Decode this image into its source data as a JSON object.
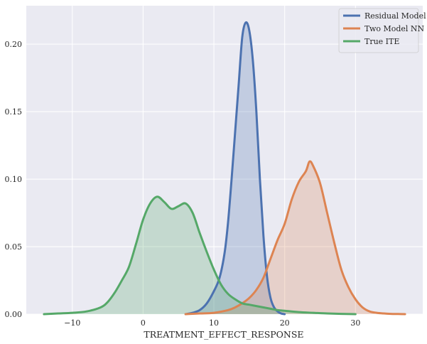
{
  "chart_data": {
    "type": "area",
    "title": "",
    "xlabel": "TREATMENT_EFFECT_RESPONSE",
    "ylabel": "",
    "xlim": [
      -16.5,
      39.5
    ],
    "ylim": [
      0,
      0.2285
    ],
    "x_ticks": [
      -10,
      0,
      10,
      20,
      30
    ],
    "x_tick_labels": [
      "−10",
      "0",
      "10",
      "20",
      "30"
    ],
    "y_ticks": [
      0.0,
      0.05,
      0.1,
      0.15,
      0.2
    ],
    "y_tick_labels": [
      "0.00",
      "0.05",
      "0.10",
      "0.15",
      "0.20"
    ],
    "grid": true,
    "legend_position": "top-right",
    "series": [
      {
        "name": "Residual Model",
        "color": "#4c72b0",
        "x": [
          6,
          7,
          8,
          9,
          10,
          10.8,
          11.5,
          12,
          12.5,
          13,
          13.5,
          14,
          14.5,
          15,
          15.5,
          16,
          16.5,
          17,
          17.5,
          18,
          18.5,
          19,
          19.5,
          20
        ],
        "y": [
          0,
          0.001,
          0.003,
          0.008,
          0.017,
          0.027,
          0.045,
          0.068,
          0.1,
          0.135,
          0.17,
          0.205,
          0.216,
          0.21,
          0.188,
          0.15,
          0.1,
          0.058,
          0.028,
          0.012,
          0.005,
          0.002,
          0.0005,
          0
        ]
      },
      {
        "name": "Two Model NN",
        "color": "#dd8452",
        "x": [
          6,
          8,
          10,
          12,
          13,
          14,
          15,
          16,
          17,
          18,
          19,
          20,
          21,
          22,
          23,
          23.5,
          24,
          25,
          26,
          27,
          28,
          29,
          30,
          31,
          32,
          33,
          34,
          35,
          36,
          37
        ],
        "y": [
          0,
          0.0005,
          0.001,
          0.003,
          0.005,
          0.008,
          0.012,
          0.018,
          0.027,
          0.041,
          0.055,
          0.067,
          0.085,
          0.098,
          0.106,
          0.113,
          0.11,
          0.097,
          0.075,
          0.053,
          0.033,
          0.02,
          0.011,
          0.005,
          0.002,
          0.001,
          0.0005,
          0.0002,
          0.0001,
          0
        ]
      },
      {
        "name": "True ITE",
        "color": "#55a868",
        "x": [
          -14,
          -12,
          -10,
          -8,
          -6,
          -5,
          -4,
          -3,
          -2,
          -1,
          0,
          1,
          2,
          3,
          4,
          5,
          6,
          7,
          8,
          9,
          10,
          11,
          12,
          13,
          14,
          15,
          16,
          17,
          18,
          19,
          20,
          22,
          24,
          26,
          28,
          30
        ],
        "y": [
          0,
          0.0005,
          0.001,
          0.002,
          0.005,
          0.009,
          0.016,
          0.025,
          0.035,
          0.052,
          0.07,
          0.082,
          0.087,
          0.083,
          0.078,
          0.08,
          0.082,
          0.075,
          0.06,
          0.046,
          0.033,
          0.022,
          0.015,
          0.011,
          0.008,
          0.007,
          0.006,
          0.005,
          0.004,
          0.003,
          0.0025,
          0.0015,
          0.001,
          0.0005,
          0.0002,
          0
        ]
      }
    ]
  }
}
